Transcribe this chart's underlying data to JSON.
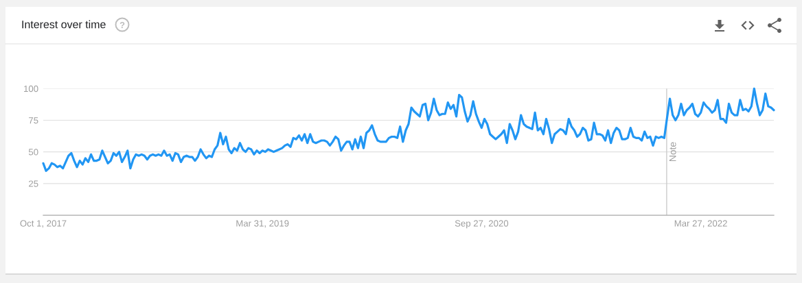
{
  "chart_data": {
    "type": "line",
    "title": "Interest over time",
    "x": [
      "2017-10-01",
      "2017-10-08",
      "2017-10-15",
      "2017-10-22",
      "2017-10-29",
      "2017-11-05",
      "2017-11-12",
      "2017-11-19",
      "2017-11-26",
      "2017-12-03",
      "2017-12-10",
      "2017-12-17",
      "2017-12-24",
      "2017-12-31",
      "2018-01-07",
      "2018-01-14",
      "2018-01-21",
      "2018-01-28",
      "2018-02-04",
      "2018-02-11",
      "2018-02-18",
      "2018-02-25",
      "2018-03-04",
      "2018-03-11",
      "2018-03-18",
      "2018-03-25",
      "2018-04-01",
      "2018-04-08",
      "2018-04-15",
      "2018-04-22",
      "2018-04-29",
      "2018-05-06",
      "2018-05-13",
      "2018-05-20",
      "2018-05-27",
      "2018-06-03",
      "2018-06-10",
      "2018-06-17",
      "2018-06-24",
      "2018-07-01",
      "2018-07-08",
      "2018-07-15",
      "2018-07-22",
      "2018-07-29",
      "2018-08-05",
      "2018-08-12",
      "2018-08-19",
      "2018-08-26",
      "2018-09-02",
      "2018-09-09",
      "2018-09-16",
      "2018-09-23",
      "2018-09-30",
      "2018-10-07",
      "2018-10-14",
      "2018-10-21",
      "2018-10-28",
      "2018-11-04",
      "2018-11-11",
      "2018-11-18",
      "2018-11-25",
      "2018-12-02",
      "2018-12-09",
      "2018-12-16",
      "2018-12-23",
      "2018-12-30",
      "2019-01-06",
      "2019-01-13",
      "2019-01-20",
      "2019-01-27",
      "2019-02-03",
      "2019-02-10",
      "2019-02-17",
      "2019-02-24",
      "2019-03-03",
      "2019-03-10",
      "2019-03-17",
      "2019-03-24",
      "2019-03-31",
      "2019-04-07",
      "2019-04-14",
      "2019-04-21",
      "2019-04-28",
      "2019-05-05",
      "2019-05-12",
      "2019-05-19",
      "2019-05-26",
      "2019-06-02",
      "2019-06-09",
      "2019-06-16",
      "2019-06-23",
      "2019-06-30",
      "2019-07-07",
      "2019-07-14",
      "2019-07-21",
      "2019-07-28",
      "2019-08-04",
      "2019-08-11",
      "2019-08-18",
      "2019-08-25",
      "2019-09-01",
      "2019-09-08",
      "2019-09-15",
      "2019-09-22",
      "2019-09-29",
      "2019-10-06",
      "2019-10-13",
      "2019-10-20",
      "2019-10-27",
      "2019-11-03",
      "2019-11-10",
      "2019-11-17",
      "2019-11-24",
      "2019-12-01",
      "2019-12-08",
      "2019-12-15",
      "2019-12-22",
      "2019-12-29",
      "2020-01-05",
      "2020-01-12",
      "2020-01-19",
      "2020-01-26",
      "2020-02-02",
      "2020-02-09",
      "2020-02-16",
      "2020-02-23",
      "2020-03-01",
      "2020-03-08",
      "2020-03-15",
      "2020-03-22",
      "2020-03-29",
      "2020-04-05",
      "2020-04-12",
      "2020-04-19",
      "2020-04-26",
      "2020-05-03",
      "2020-05-10",
      "2020-05-17",
      "2020-05-24",
      "2020-05-31",
      "2020-06-07",
      "2020-06-14",
      "2020-06-21",
      "2020-06-28",
      "2020-07-05",
      "2020-07-12",
      "2020-07-19",
      "2020-07-26",
      "2020-08-02",
      "2020-08-09",
      "2020-08-16",
      "2020-08-23",
      "2020-08-30",
      "2020-09-06",
      "2020-09-13",
      "2020-09-20",
      "2020-09-27",
      "2020-10-04",
      "2020-10-11",
      "2020-10-18",
      "2020-10-25",
      "2020-11-01",
      "2020-11-08",
      "2020-11-15",
      "2020-11-22",
      "2020-11-29",
      "2020-12-06",
      "2020-12-13",
      "2020-12-20",
      "2020-12-27",
      "2021-01-03",
      "2021-01-10",
      "2021-01-17",
      "2021-01-24",
      "2021-01-31",
      "2021-02-07",
      "2021-02-14",
      "2021-02-21",
      "2021-02-28",
      "2021-03-07",
      "2021-03-14",
      "2021-03-21",
      "2021-03-28",
      "2021-04-04",
      "2021-04-11",
      "2021-04-18",
      "2021-04-25",
      "2021-05-02",
      "2021-05-09",
      "2021-05-16",
      "2021-05-23",
      "2021-05-30",
      "2021-06-06",
      "2021-06-13",
      "2021-06-20",
      "2021-06-27",
      "2021-07-04",
      "2021-07-11",
      "2021-07-18",
      "2021-07-25",
      "2021-08-01",
      "2021-08-08",
      "2021-08-15",
      "2021-08-22",
      "2021-08-29",
      "2021-09-05",
      "2021-09-12",
      "2021-09-19",
      "2021-09-26",
      "2021-10-03",
      "2021-10-10",
      "2021-10-17",
      "2021-10-24",
      "2021-10-31",
      "2021-11-07",
      "2021-11-14",
      "2021-11-21",
      "2021-11-28",
      "2021-12-05",
      "2021-12-12",
      "2021-12-19",
      "2021-12-26",
      "2022-01-02",
      "2022-01-09",
      "2022-01-16",
      "2022-01-23",
      "2022-01-30",
      "2022-02-06",
      "2022-02-13",
      "2022-02-20",
      "2022-02-27",
      "2022-03-06",
      "2022-03-13",
      "2022-03-20",
      "2022-03-27",
      "2022-04-03",
      "2022-04-10",
      "2022-04-17",
      "2022-04-24",
      "2022-05-01",
      "2022-05-08",
      "2022-05-15",
      "2022-05-22",
      "2022-05-29",
      "2022-06-05",
      "2022-06-12",
      "2022-06-19",
      "2022-06-26",
      "2022-07-03",
      "2022-07-10",
      "2022-07-17",
      "2022-07-24",
      "2022-07-31",
      "2022-08-07",
      "2022-08-14",
      "2022-08-21",
      "2022-08-28",
      "2022-09-04",
      "2022-09-11",
      "2022-09-18",
      "2022-09-25"
    ],
    "series": [
      {
        "color": "#2196f3",
        "values": [
          41,
          35,
          37,
          41,
          40,
          38,
          39,
          37,
          42,
          47,
          49,
          43,
          38,
          43,
          40,
          45,
          42,
          48,
          43,
          43,
          44,
          51,
          46,
          41,
          43,
          49,
          47,
          50,
          42,
          46,
          51,
          37,
          44,
          48,
          47,
          48,
          47,
          44,
          47,
          48,
          47,
          48,
          47,
          51,
          47,
          48,
          43,
          49,
          48,
          42,
          46,
          47,
          46,
          46,
          43,
          46,
          52,
          48,
          45,
          47,
          46,
          52,
          55,
          65,
          56,
          62,
          52,
          49,
          53,
          51,
          57,
          52,
          50,
          53,
          52,
          48,
          51,
          49,
          51,
          50,
          52,
          51,
          50,
          51,
          52,
          53,
          55,
          56,
          54,
          61,
          60,
          63,
          59,
          64,
          57,
          64,
          58,
          57,
          58,
          59,
          59,
          58,
          55,
          58,
          62,
          60,
          51,
          55,
          58,
          58,
          52,
          60,
          53,
          62,
          53,
          65,
          67,
          71,
          64,
          59,
          58,
          58,
          58,
          61,
          62,
          62,
          61,
          70,
          58,
          67,
          72,
          85,
          82,
          80,
          78,
          87,
          88,
          75,
          81,
          92,
          83,
          79,
          80,
          80,
          89,
          84,
          87,
          78,
          95,
          93,
          82,
          74,
          79,
          90,
          80,
          74,
          69,
          76,
          72,
          64,
          62,
          60,
          62,
          64,
          67,
          57,
          72,
          67,
          60,
          66,
          79,
          72,
          70,
          69,
          68,
          81,
          67,
          69,
          64,
          76,
          68,
          57,
          64,
          66,
          68,
          67,
          64,
          76,
          70,
          67,
          62,
          64,
          69,
          67,
          59,
          60,
          73,
          64,
          64,
          63,
          59,
          67,
          57,
          65,
          69,
          67,
          60,
          60,
          61,
          69,
          62,
          61,
          61,
          59,
          66,
          61,
          62,
          55,
          62,
          61,
          62,
          61,
          77,
          92,
          79,
          75,
          79,
          88,
          79,
          83,
          85,
          88,
          80,
          78,
          81,
          89,
          86,
          84,
          81,
          83,
          91,
          76,
          76,
          73,
          88,
          81,
          79,
          79,
          91,
          83,
          84,
          82,
          86,
          100,
          88,
          79,
          83,
          96,
          86,
          85,
          83
        ]
      }
    ],
    "xlim": [
      "2017-10-01",
      "2022-09-25"
    ],
    "xticks": [
      {
        "value": "2017-10-01",
        "label": "Oct 1, 2017"
      },
      {
        "value": "2019-03-31",
        "label": "Mar 31, 2019"
      },
      {
        "value": "2020-09-27",
        "label": "Sep 27, 2020"
      },
      {
        "value": "2022-03-27",
        "label": "Mar 27, 2022"
      }
    ],
    "ylim": [
      0,
      100
    ],
    "yticks": [
      25,
      50,
      75,
      100
    ],
    "grid": "y",
    "line_style": "solid",
    "ref_lines": [
      {
        "axis": "x",
        "value": "2022-01-01",
        "label": "Note",
        "color": "#cccccc"
      }
    ]
  }
}
